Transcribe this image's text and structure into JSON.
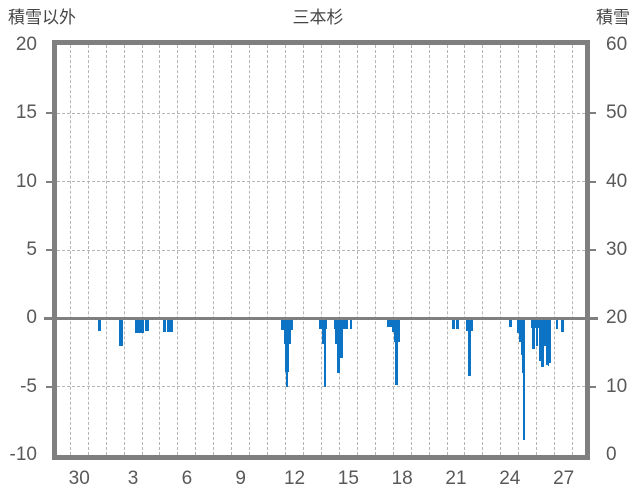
{
  "header": {
    "left_axis_title": "積雪以外",
    "title": "三本杉",
    "right_axis_title": "積雪"
  },
  "colors": {
    "bar": "#0d73c4",
    "frame": "#7f7f7f",
    "grid": "#b5b5b5",
    "tick_label": "#595959",
    "header_text": "#454545",
    "background": "#ffffff"
  },
  "chart_data": {
    "type": "bar",
    "title": "三本杉",
    "orientation": "downward-from-zero",
    "grid": "on",
    "y_axis_left": {
      "title": "積雪以外",
      "ticks": [
        20,
        15,
        10,
        5,
        0,
        -5,
        -10
      ],
      "range": [
        -10,
        20
      ],
      "zero_line": 0
    },
    "y_axis_right": {
      "title": "積雪",
      "ticks": [
        60,
        50,
        40,
        30,
        20,
        10,
        0
      ],
      "range": [
        0,
        60
      ]
    },
    "x_axis": {
      "unit": "day-of-month",
      "tick_labels": [
        "30",
        "3",
        "6",
        "9",
        "12",
        "15",
        "18",
        "21",
        "24",
        "27"
      ],
      "tick_day_positions": [
        0.5,
        3.5,
        6.5,
        9.5,
        12.5,
        15.5,
        18.5,
        21.5,
        24.5,
        27.5
      ],
      "domain_days": [
        -0.74,
        28.69
      ],
      "gridline_start": 0,
      "gridline_end": 28,
      "gridline_step": 1
    },
    "bars": [
      {
        "d1": 1.54,
        "d2": 1.74,
        "v": -0.95
      },
      {
        "d1": 2.71,
        "d2": 2.94,
        "v": -2.0
      },
      {
        "d1": 3.61,
        "d2": 4.11,
        "v": -1.05
      },
      {
        "d1": 4.16,
        "d2": 4.39,
        "v": -0.95
      },
      {
        "d1": 5.18,
        "d2": 5.33,
        "v": -1.0
      },
      {
        "d1": 5.41,
        "d2": 5.74,
        "v": -1.0
      },
      {
        "d1": 11.74,
        "d2": 12.41,
        "v": -0.85
      },
      {
        "d1": 11.91,
        "d2": 12.33,
        "v": -1.9
      },
      {
        "d1": 11.97,
        "d2": 12.19,
        "v": -3.9
      },
      {
        "d1": 12.02,
        "d2": 12.16,
        "v": -5.0
      },
      {
        "d1": 13.86,
        "d2": 14.31,
        "v": -0.8
      },
      {
        "d1": 14.03,
        "d2": 14.25,
        "v": -1.85
      },
      {
        "d1": 14.14,
        "d2": 14.25,
        "v": -5.0
      },
      {
        "d1": 14.7,
        "d2": 15.48,
        "v": -0.8
      },
      {
        "d1": 14.76,
        "d2": 15.2,
        "v": -1.85
      },
      {
        "d1": 14.87,
        "d2": 15.01,
        "v": -4.0
      },
      {
        "d1": 15.03,
        "d2": 15.2,
        "v": -2.9
      },
      {
        "d1": 15.59,
        "d2": 15.7,
        "v": -0.8
      },
      {
        "d1": 17.65,
        "d2": 17.93,
        "v": -0.6
      },
      {
        "d1": 17.93,
        "d2": 18.38,
        "v": -1.0
      },
      {
        "d1": 18.04,
        "d2": 18.38,
        "v": -1.75
      },
      {
        "d1": 18.1,
        "d2": 18.26,
        "v": -4.9
      },
      {
        "d1": 21.28,
        "d2": 21.42,
        "v": -0.8
      },
      {
        "d1": 21.5,
        "d2": 21.64,
        "v": -0.8
      },
      {
        "d1": 22.06,
        "d2": 22.45,
        "v": -0.9
      },
      {
        "d1": 22.17,
        "d2": 22.33,
        "v": -4.2
      },
      {
        "d1": 24.48,
        "d2": 24.64,
        "v": -0.65
      },
      {
        "d1": 24.9,
        "d2": 25.35,
        "v": -1.1
      },
      {
        "d1": 25.01,
        "d2": 25.35,
        "v": -1.75
      },
      {
        "d1": 25.12,
        "d2": 25.35,
        "v": -2.7
      },
      {
        "d1": 25.18,
        "d2": 25.35,
        "v": -4.0
      },
      {
        "d1": 25.23,
        "d2": 25.35,
        "v": -6.7
      },
      {
        "d1": 25.24,
        "d2": 25.33,
        "v": -8.9
      },
      {
        "d1": 25.68,
        "d2": 26.79,
        "v": -0.7
      },
      {
        "d1": 25.73,
        "d2": 25.9,
        "v": -2.25
      },
      {
        "d1": 25.96,
        "d2": 26.07,
        "v": -2.05
      },
      {
        "d1": 26.12,
        "d2": 26.4,
        "v": -3.1
      },
      {
        "d1": 26.23,
        "d2": 26.4,
        "v": -3.55
      },
      {
        "d1": 26.43,
        "d2": 26.52,
        "v": -2.0
      },
      {
        "d1": 26.52,
        "d2": 26.58,
        "v": -3.4
      },
      {
        "d1": 26.62,
        "d2": 26.68,
        "v": -3.5
      },
      {
        "d1": 26.71,
        "d2": 26.77,
        "v": -3.3
      },
      {
        "d1": 27.07,
        "d2": 27.21,
        "v": -0.8
      },
      {
        "d1": 27.35,
        "d2": 27.52,
        "v": -1.0
      }
    ]
  }
}
